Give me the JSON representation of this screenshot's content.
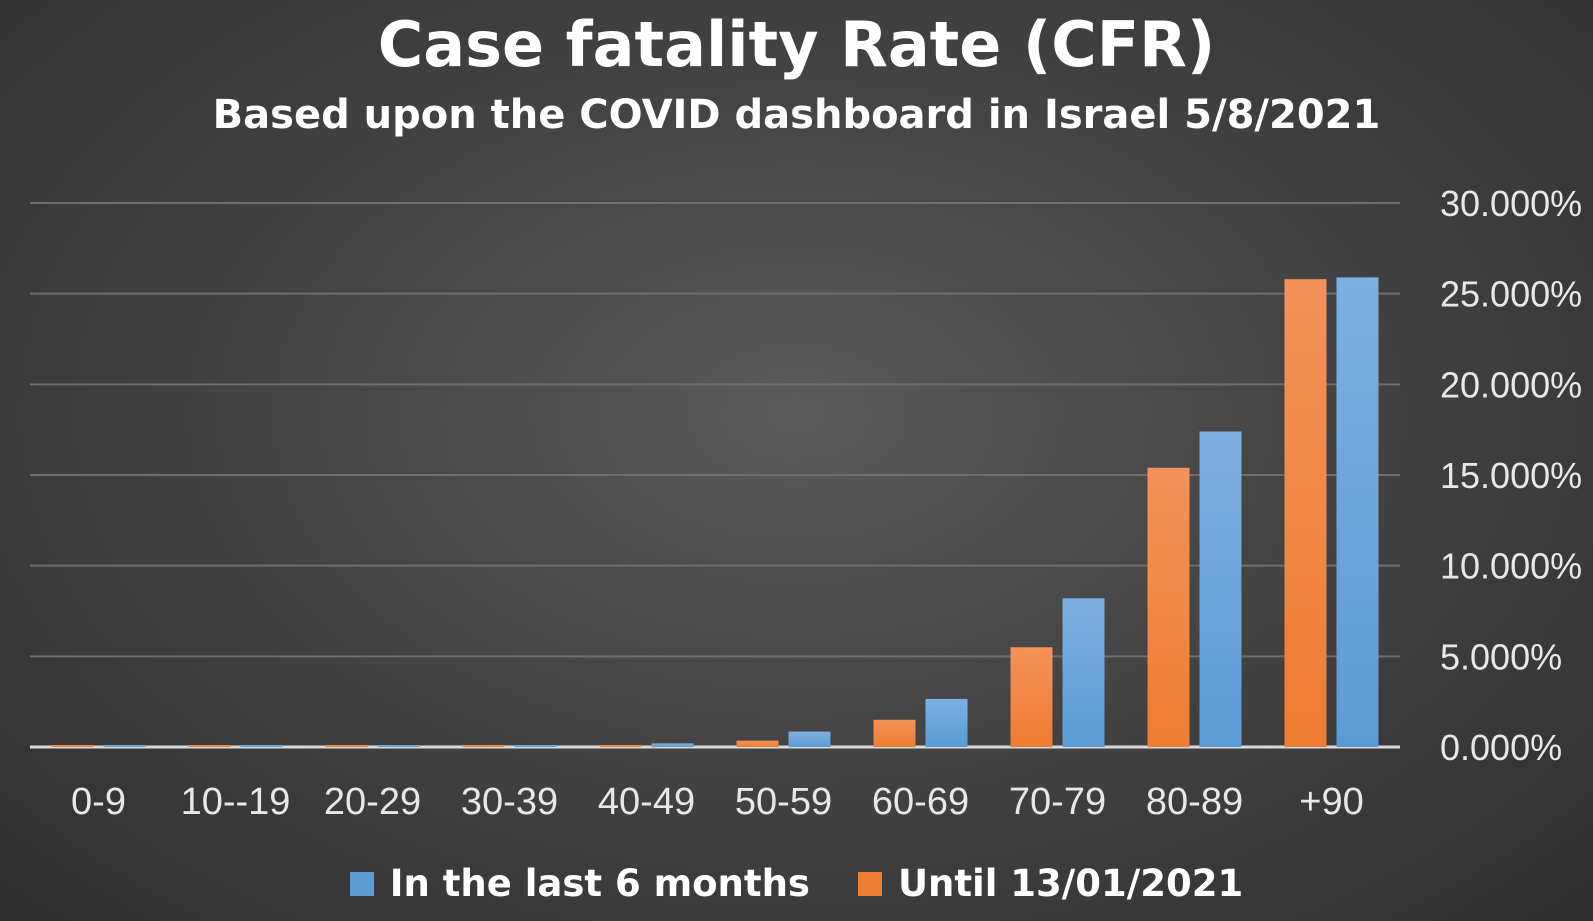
{
  "chart_data": {
    "type": "bar",
    "title": "Case fatality Rate (CFR)",
    "subtitle": "Based upon the COVID dashboard in Israel 5/8/2021",
    "categories": [
      "0-9",
      "10--19",
      "20-29",
      "30-39",
      "40-49",
      "50-59",
      "60-69",
      "70-79",
      "80-89",
      "+90"
    ],
    "series": [
      {
        "name": "Until 13/01/2021",
        "color": "#ED7D31",
        "values": [
          0.0,
          0.0,
          0.0,
          0.05,
          0.05,
          0.35,
          1.5,
          5.5,
          15.4,
          25.8
        ]
      },
      {
        "name": "In the last 6 months",
        "color": "#5B9BD5",
        "values": [
          0.0,
          0.0,
          0.05,
          0.05,
          0.2,
          0.85,
          2.65,
          8.2,
          17.4,
          25.9
        ]
      }
    ],
    "ylim": [
      0,
      30
    ],
    "yticks": [
      0,
      5,
      10,
      15,
      20,
      25,
      30
    ],
    "ytick_labels": [
      "0.000%",
      "5.000%",
      "10.000%",
      "15.000%",
      "20.000%",
      "25.000%",
      "30.000%"
    ],
    "y_axis_position": "right",
    "grid": true,
    "legend_position": "bottom",
    "legend_order": [
      "In the last 6 months",
      "Until 13/01/2021"
    ]
  }
}
